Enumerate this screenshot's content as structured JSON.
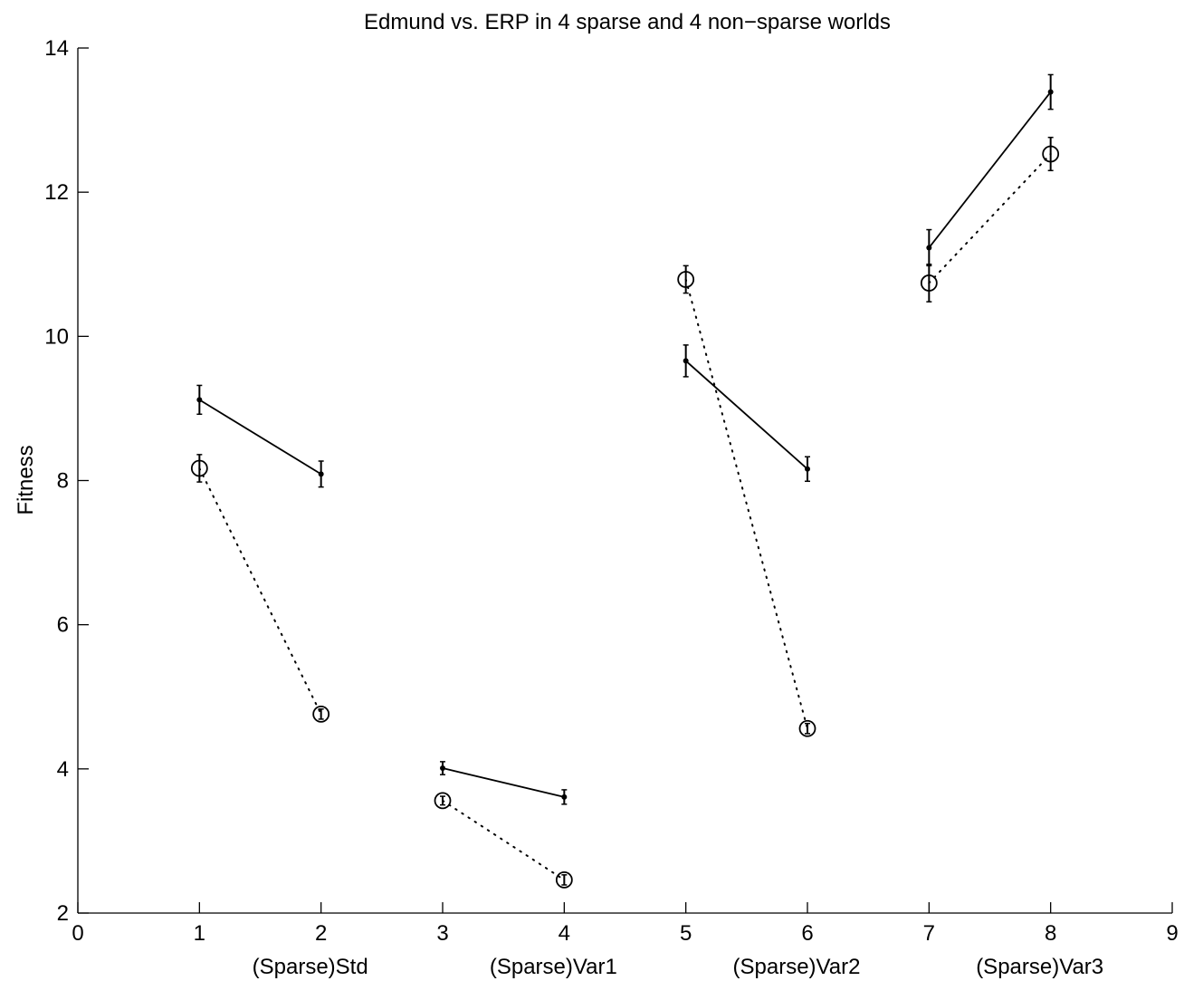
{
  "chart_data": {
    "type": "line",
    "title": "Edmund vs. ERP in 4 sparse and 4 non−sparse worlds",
    "xlabel": "",
    "ylabel": "Fitness",
    "xlim": [
      0,
      9
    ],
    "ylim": [
      2,
      14
    ],
    "x_ticks": [
      "0",
      "1",
      "2",
      "3",
      "4",
      "5",
      "6",
      "7",
      "8",
      "9"
    ],
    "y_ticks": [
      "2",
      "4",
      "6",
      "8",
      "10",
      "12",
      "14"
    ],
    "group_labels": [
      {
        "text": "(Sparse)Std",
        "x": 2
      },
      {
        "text": "(Sparse)Var1",
        "x": 4
      },
      {
        "text": "(Sparse)Var2",
        "x": 6
      },
      {
        "text": "(Sparse)Var3",
        "x": 8
      }
    ],
    "grid": false,
    "legend": "none",
    "series": [
      {
        "marker": "dot",
        "line_style": "solid",
        "color": "#000000",
        "segments": [
          [
            {
              "x": 1,
              "y": 9.12,
              "err": 0.2
            },
            {
              "x": 2,
              "y": 8.09,
              "err": 0.18
            }
          ],
          [
            {
              "x": 3,
              "y": 4.01,
              "err": 0.09
            },
            {
              "x": 4,
              "y": 3.61,
              "err": 0.1
            }
          ],
          [
            {
              "x": 5,
              "y": 9.66,
              "err": 0.22
            },
            {
              "x": 6,
              "y": 8.16,
              "err": 0.17
            }
          ],
          [
            {
              "x": 7,
              "y": 11.23,
              "err": 0.25
            },
            {
              "x": 8,
              "y": 13.39,
              "err": 0.24
            }
          ]
        ]
      },
      {
        "marker": "circle",
        "line_style": "dotted",
        "color": "#000000",
        "segments": [
          [
            {
              "x": 1,
              "y": 8.17,
              "err": 0.19
            },
            {
              "x": 2,
              "y": 4.76,
              "err": 0.07
            }
          ],
          [
            {
              "x": 3,
              "y": 3.56,
              "err": 0.06
            },
            {
              "x": 4,
              "y": 2.46,
              "err": 0.07
            }
          ],
          [
            {
              "x": 5,
              "y": 10.79,
              "err": 0.19
            },
            {
              "x": 6,
              "y": 4.56,
              "err": 0.07
            }
          ],
          [
            {
              "x": 7,
              "y": 10.74,
              "err": 0.26
            },
            {
              "x": 8,
              "y": 12.53,
              "err": 0.23
            }
          ]
        ]
      }
    ]
  }
}
